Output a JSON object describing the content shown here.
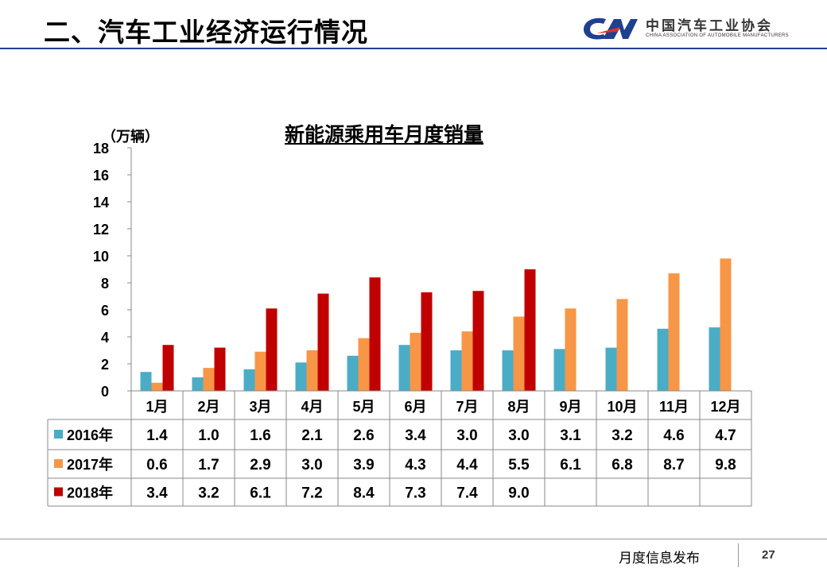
{
  "header": {
    "title": "二、汽车工业经济运行情况"
  },
  "logo": {
    "cn_name": "中国汽车工业协会",
    "en_name": "CHINA ASSOCIATION OF AUTOMOBILE MANUFACTURERS"
  },
  "footer": {
    "label": "月度信息发布",
    "page_number": "27"
  },
  "colors": {
    "series_2016": "#4bacc6",
    "series_2017": "#f79646",
    "series_2018": "#c00000",
    "header_rule": "#1f3f8f"
  },
  "chart_data": {
    "type": "bar",
    "title": "新能源乘用车月度销量",
    "ylabel": "（万辆）",
    "xlabel": "",
    "ylim": [
      0,
      18
    ],
    "yticks": [
      0,
      2,
      4,
      6,
      8,
      10,
      12,
      14,
      16,
      18
    ],
    "categories": [
      "1月",
      "2月",
      "3月",
      "4月",
      "5月",
      "6月",
      "7月",
      "8月",
      "9月",
      "10月",
      "11月",
      "12月"
    ],
    "series": [
      {
        "name": "2016年",
        "values": [
          1.4,
          1.0,
          1.6,
          2.1,
          2.6,
          3.4,
          3.0,
          3.0,
          3.1,
          3.2,
          4.6,
          4.7
        ],
        "labels": [
          "1.4",
          "1.0",
          "1.6",
          "2.1",
          "2.6",
          "3.4",
          "3.0",
          "3.0",
          "3.1",
          "3.2",
          "4.6",
          "4.7"
        ]
      },
      {
        "name": "2017年",
        "values": [
          0.6,
          1.7,
          2.9,
          3.0,
          3.9,
          4.3,
          4.4,
          5.5,
          6.1,
          6.8,
          8.7,
          9.8
        ],
        "labels": [
          "0.6",
          "1.7",
          "2.9",
          "3.0",
          "3.9",
          "4.3",
          "4.4",
          "5.5",
          "6.1",
          "6.8",
          "8.7",
          "9.8"
        ]
      },
      {
        "name": "2018年",
        "values": [
          3.4,
          3.2,
          6.1,
          7.2,
          8.4,
          7.3,
          7.4,
          9.0,
          null,
          null,
          null,
          null
        ],
        "labels": [
          "3.4",
          "3.2",
          "6.1",
          "7.2",
          "8.4",
          "7.3",
          "7.4",
          "9.0",
          "",
          "",
          "",
          ""
        ]
      }
    ]
  }
}
